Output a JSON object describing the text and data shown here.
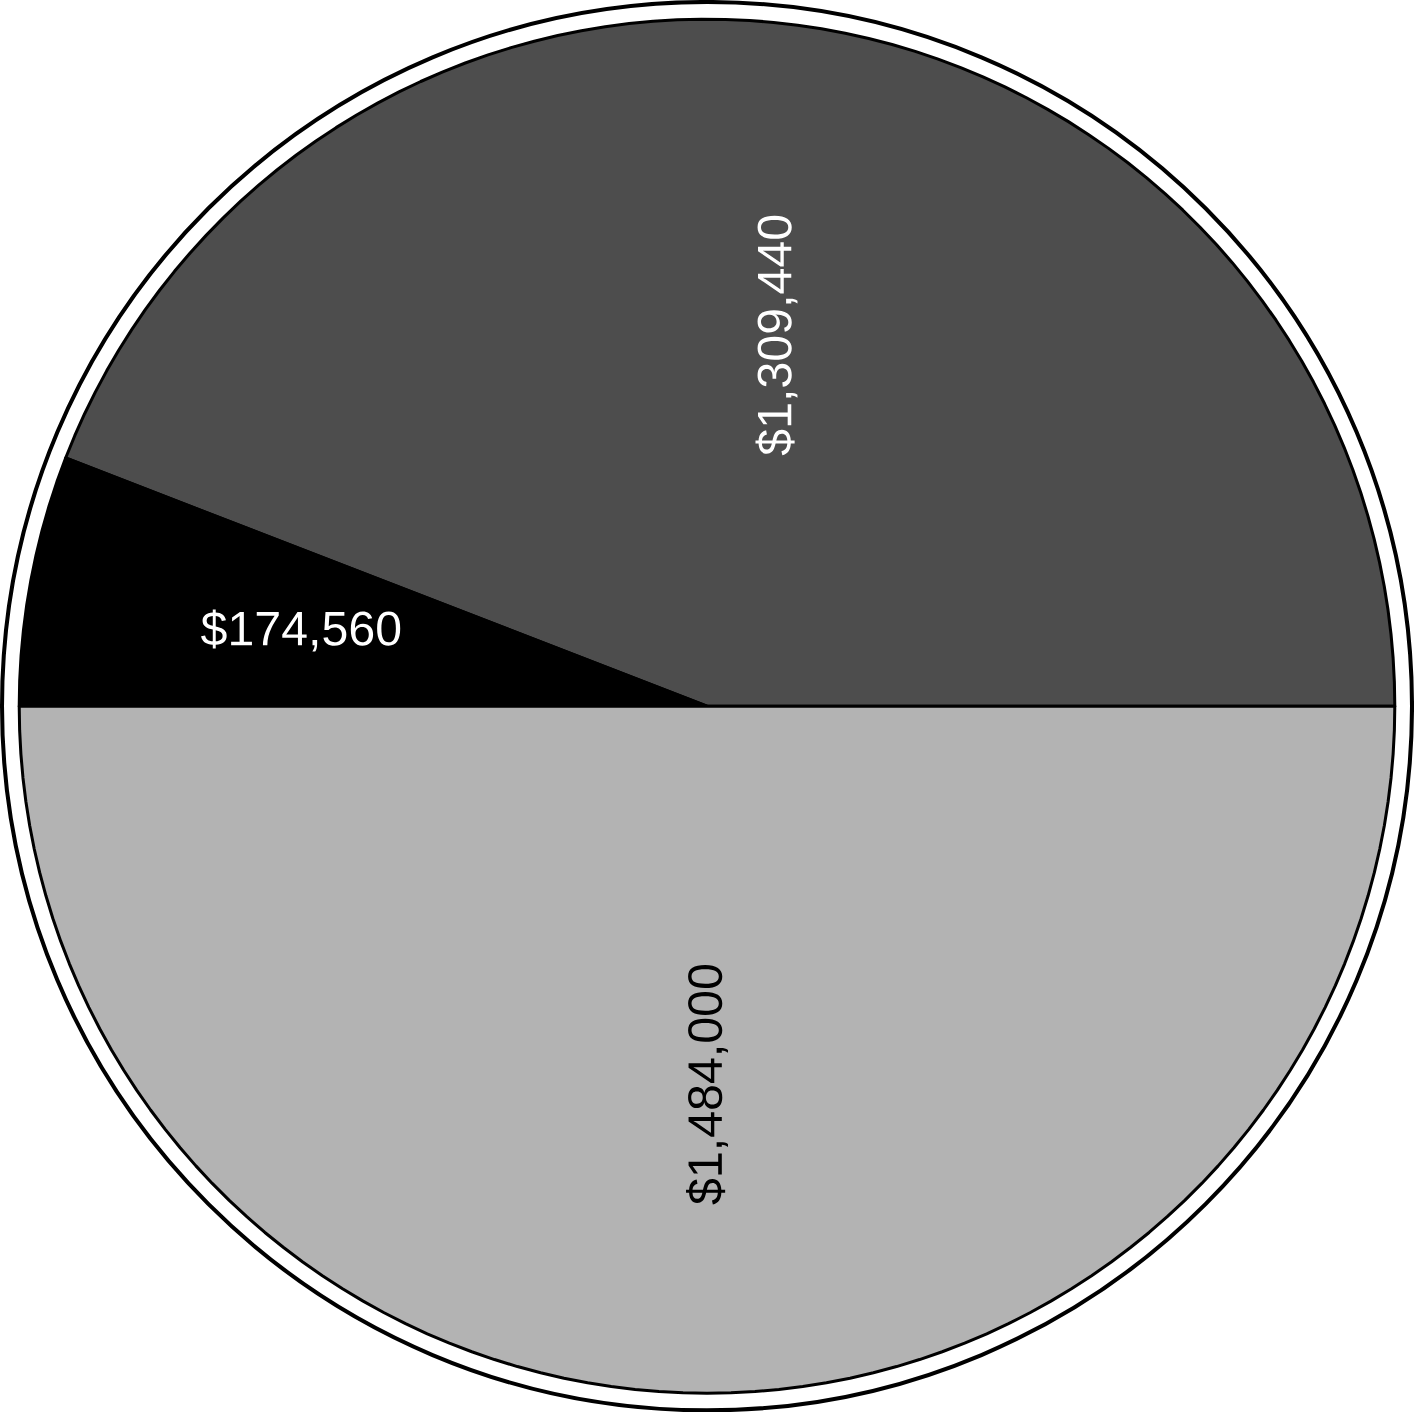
{
  "chart_data": {
    "type": "pie",
    "categories": [
      null,
      null,
      null
    ],
    "values": [
      1309440,
      174560,
      1484000
    ],
    "colors": [
      "#4d4d4d",
      "#000000",
      "#b3b3b3"
    ],
    "value_labels": [
      "$1,309,440",
      "$174,560",
      "$1,484,000"
    ]
  }
}
